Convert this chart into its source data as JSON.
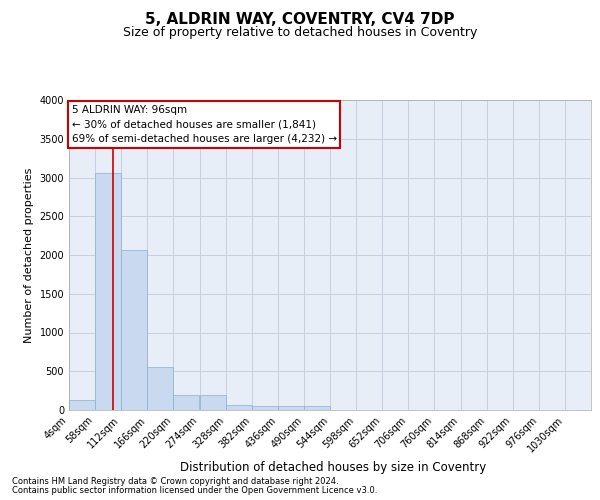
{
  "title": "5, ALDRIN WAY, COVENTRY, CV4 7DP",
  "subtitle": "Size of property relative to detached houses in Coventry",
  "xlabel": "Distribution of detached houses by size in Coventry",
  "ylabel": "Number of detached properties",
  "footnote1": "Contains HM Land Registry data © Crown copyright and database right 2024.",
  "footnote2": "Contains public sector information licensed under the Open Government Licence v3.0.",
  "annotation_title": "5 ALDRIN WAY: 96sqm",
  "annotation_line1": "← 30% of detached houses are smaller (1,841)",
  "annotation_line2": "69% of semi-detached houses are larger (4,232) →",
  "property_size": 96,
  "bin_edges": [
    4,
    58,
    112,
    166,
    220,
    274,
    328,
    382,
    436,
    490,
    544,
    598,
    652,
    706,
    760,
    814,
    868,
    922,
    976,
    1030,
    1084
  ],
  "bar_heights": [
    130,
    3060,
    2060,
    560,
    200,
    200,
    70,
    50,
    50,
    50,
    0,
    0,
    0,
    0,
    0,
    0,
    0,
    0,
    0,
    0
  ],
  "bar_color": "#c9d9f0",
  "bar_edge_color": "#8aafd0",
  "vline_color": "#cc0000",
  "grid_color": "#c8d0e0",
  "background_color": "#e8eef8",
  "annotation_box_color": "#ffffff",
  "annotation_box_edge": "#cc0000",
  "ylim": [
    0,
    4000
  ],
  "yticks": [
    0,
    500,
    1000,
    1500,
    2000,
    2500,
    3000,
    3500,
    4000
  ],
  "title_fontsize": 11,
  "subtitle_fontsize": 9,
  "tick_label_fontsize": 7,
  "ylabel_fontsize": 8,
  "xlabel_fontsize": 8.5,
  "annotation_fontsize": 7.5,
  "footnote_fontsize": 6
}
